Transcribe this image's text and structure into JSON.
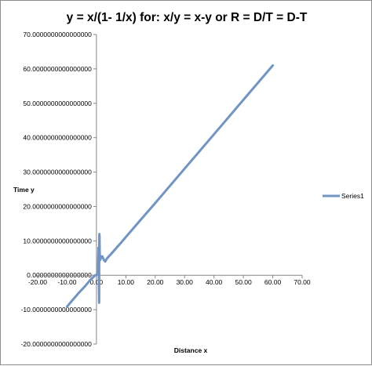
{
  "chart_data": {
    "type": "line",
    "title": "y = x/(1- 1/x) for:  x/y = x-y or R = D/T = D-T",
    "xlabel": "Distance x",
    "ylabel": "Time y",
    "xlim": [
      -20,
      70
    ],
    "ylim": [
      -20,
      70
    ],
    "x_ticks": [
      -20,
      -10,
      0,
      10,
      20,
      30,
      40,
      50,
      60,
      70
    ],
    "x_tick_labels": [
      "-20.00",
      "-10.00",
      "0.00",
      "10.00",
      "20.00",
      "30.00",
      "40.00",
      "50.00",
      "60.00",
      "70.00"
    ],
    "y_ticks": [
      -20,
      -10,
      0,
      10,
      20,
      30,
      40,
      50,
      60,
      70
    ],
    "y_tick_labels": [
      "-20.0000000000000000",
      "-10.0000000000000000",
      "0.0000000000000000",
      "10.0000000000000000",
      "20.0000000000000000",
      "30.0000000000000000",
      "40.0000000000000000",
      "50.0000000000000000",
      "60.0000000000000000",
      "70.0000000000000000"
    ],
    "grid": false,
    "legend_position": "right",
    "series": [
      {
        "name": "Series1",
        "color": "#7094c6",
        "x": [
          -10,
          -8,
          -6,
          -4,
          -2,
          -1,
          -0.5,
          0,
          0.5,
          0.7,
          0.8,
          0.9,
          0.95,
          1,
          1.05,
          1.1,
          1.2,
          1.3,
          1.5,
          1.8,
          2,
          2.5,
          3,
          3.5,
          4,
          5,
          6,
          8,
          10,
          15,
          20,
          30,
          40,
          50,
          60
        ],
        "y": [
          -9.1,
          -7.1,
          -5.1,
          -3.3,
          -1.3,
          -0.5,
          0.0,
          0.0,
          1.0,
          8.0,
          0.5,
          -8.0,
          3.0,
          12.0,
          11.0,
          7.0,
          4.5,
          4.5,
          5.0,
          5.5,
          5.5,
          4.5,
          4.0,
          4.8,
          5.3,
          6.2,
          7.2,
          9.1,
          11.1,
          16.1,
          21.0,
          31.0,
          41.0,
          51.0,
          61.0
        ]
      }
    ]
  }
}
